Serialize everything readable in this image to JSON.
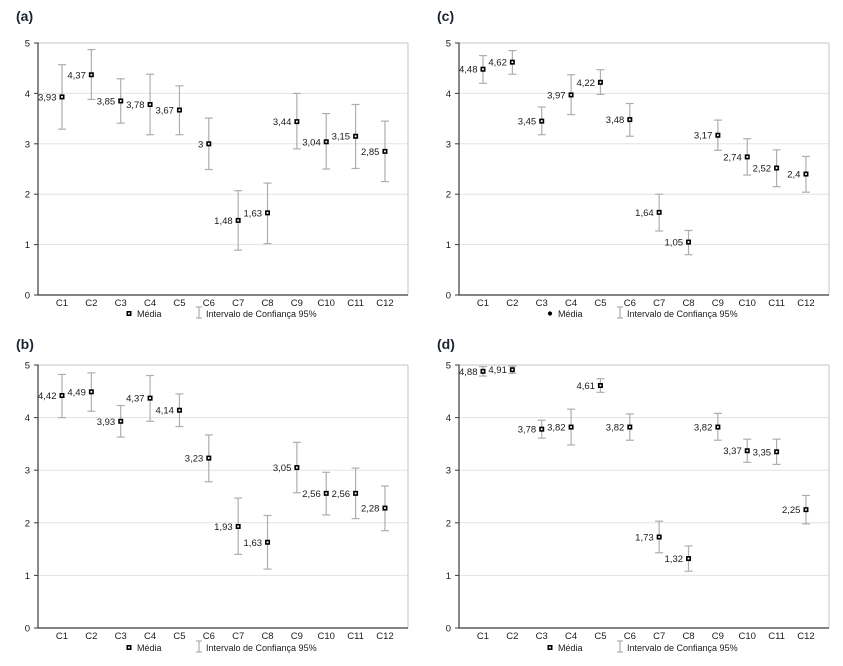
{
  "colors": {
    "background": "#ffffff",
    "panel_label": "#1b2430",
    "axis": "#3a3a3a",
    "grid": "#e3e3e3",
    "frame": "#c6c6c6",
    "error_bar": "#aeaeae",
    "marker": "#000000",
    "marker_center": "#ffffff",
    "text": "#1a1a1a"
  },
  "legend": {
    "media_label": "Média",
    "ci_label": "Intervalo de Confiança 95%"
  },
  "chart_data": [
    {
      "type": "scatter",
      "panel_label": "(a)",
      "title": "",
      "xlabel": "",
      "ylabel": "",
      "ylim": [
        0,
        5
      ],
      "yticks": [
        0,
        1,
        2,
        3,
        4,
        5
      ],
      "grid": true,
      "legend_position": "bottom",
      "legend": [
        "Média",
        "Intervalo de Confiança 95%"
      ],
      "marker": "square",
      "categories": [
        "C1",
        "C2",
        "C3",
        "C4",
        "C5",
        "C6",
        "C7",
        "C8",
        "C9",
        "C10",
        "C11",
        "C12"
      ],
      "series": [
        {
          "name": "Média",
          "values": [
            3.93,
            4.37,
            3.85,
            3.78,
            3.67,
            3.0,
            1.48,
            1.63,
            3.44,
            3.04,
            3.15,
            2.85
          ],
          "labels": [
            "3,93",
            "4,37",
            "3,85",
            "3,78",
            "3,67",
            "3",
            "1,48",
            "1,63",
            "3,44",
            "3,04",
            "3,15",
            "2,85"
          ]
        },
        {
          "name": "Intervalo de Confiança 95%",
          "ci_low": [
            3.29,
            3.88,
            3.41,
            3.18,
            3.18,
            2.49,
            0.89,
            1.02,
            2.9,
            2.5,
            2.51,
            2.25
          ],
          "ci_high": [
            4.57,
            4.87,
            4.29,
            4.38,
            4.15,
            3.51,
            2.07,
            2.22,
            4.0,
            3.6,
            3.78,
            3.45
          ]
        }
      ]
    },
    {
      "type": "scatter",
      "panel_label": "(b)",
      "title": "",
      "xlabel": "",
      "ylabel": "",
      "ylim": [
        0,
        5
      ],
      "yticks": [
        0,
        1,
        2,
        3,
        4,
        5
      ],
      "grid": true,
      "legend_position": "bottom",
      "legend": [
        "Média",
        "Intervalo de Confiança 95%"
      ],
      "marker": "square",
      "categories": [
        "C1",
        "C2",
        "C3",
        "C4",
        "C5",
        "C6",
        "C7",
        "C8",
        "C9",
        "C10",
        "C11",
        "C12"
      ],
      "series": [
        {
          "name": "Média",
          "values": [
            4.42,
            4.49,
            3.93,
            4.37,
            4.14,
            3.23,
            1.93,
            1.63,
            3.05,
            2.56,
            2.56,
            2.28
          ],
          "labels": [
            "4,42",
            "4,49",
            "3,93",
            "4,37",
            "4,14",
            "3,23",
            "1,93",
            "1,63",
            "3,05",
            "2,56",
            "2,56",
            "2,28"
          ]
        },
        {
          "name": "Intervalo de Confiança 95%",
          "ci_low": [
            4.0,
            4.12,
            3.63,
            3.93,
            3.83,
            2.78,
            1.4,
            1.12,
            2.57,
            2.15,
            2.08,
            1.85
          ],
          "ci_high": [
            4.82,
            4.85,
            4.23,
            4.8,
            4.45,
            3.67,
            2.47,
            2.14,
            3.53,
            2.96,
            3.04,
            2.7
          ]
        }
      ]
    },
    {
      "type": "scatter",
      "panel_label": "(c)",
      "title": "",
      "xlabel": "",
      "ylabel": "",
      "ylim": [
        0,
        5
      ],
      "yticks": [
        0,
        1,
        2,
        3,
        4,
        5
      ],
      "grid": true,
      "legend_position": "bottom",
      "legend": [
        "Média",
        "Intervalo de Confiança 95%"
      ],
      "marker": "dot",
      "categories": [
        "C1",
        "C2",
        "C3",
        "C4",
        "C5",
        "C6",
        "C7",
        "C8",
        "C9",
        "C10",
        "C11",
        "C12"
      ],
      "series": [
        {
          "name": "Média",
          "values": [
            4.48,
            4.62,
            3.45,
            3.97,
            4.22,
            3.48,
            1.64,
            1.05,
            3.17,
            2.74,
            2.52,
            2.4
          ],
          "labels": [
            "4,48",
            "4,62",
            "3,45",
            "3,97",
            "4,22",
            "3,48",
            "1,64",
            "1,05",
            "3,17",
            "2,74",
            "2,52",
            "2,4"
          ]
        },
        {
          "name": "Intervalo de Confiança 95%",
          "ci_low": [
            4.2,
            4.38,
            3.18,
            3.58,
            3.98,
            3.15,
            1.27,
            0.8,
            2.87,
            2.38,
            2.15,
            2.04
          ],
          "ci_high": [
            4.75,
            4.85,
            3.73,
            4.37,
            4.47,
            3.8,
            2.0,
            1.28,
            3.47,
            3.1,
            2.88,
            2.75
          ]
        }
      ]
    },
    {
      "type": "scatter",
      "panel_label": "(d)",
      "title": "",
      "xlabel": "",
      "ylabel": "",
      "ylim": [
        0,
        5
      ],
      "yticks": [
        0,
        1,
        2,
        3,
        4,
        5
      ],
      "grid": true,
      "legend_position": "bottom",
      "legend": [
        "Média",
        "Intervalo de Confiança 95%"
      ],
      "marker": "square",
      "categories": [
        "C1",
        "C2",
        "C3",
        "C4",
        "C5",
        "C6",
        "C7",
        "C8",
        "C9",
        "C10",
        "C11",
        "C12"
      ],
      "series": [
        {
          "name": "Média",
          "values": [
            4.88,
            4.91,
            3.78,
            3.82,
            4.61,
            3.82,
            1.73,
            1.32,
            3.82,
            3.37,
            3.35,
            2.25
          ],
          "labels": [
            "4,88",
            "4,91",
            "3,78",
            "3,82",
            "4,61",
            "3,82",
            "1,73",
            "1,32",
            "3,82",
            "3,37",
            "3,35",
            "2,25"
          ]
        },
        {
          "name": "Intervalo de Confiança 95%",
          "ci_low": [
            4.79,
            4.84,
            3.61,
            3.48,
            4.48,
            3.57,
            1.43,
            1.08,
            3.57,
            3.15,
            3.11,
            1.98
          ],
          "ci_high": [
            4.97,
            4.98,
            3.95,
            4.16,
            4.74,
            4.07,
            2.03,
            1.56,
            4.08,
            3.59,
            3.59,
            2.52
          ]
        }
      ]
    }
  ]
}
